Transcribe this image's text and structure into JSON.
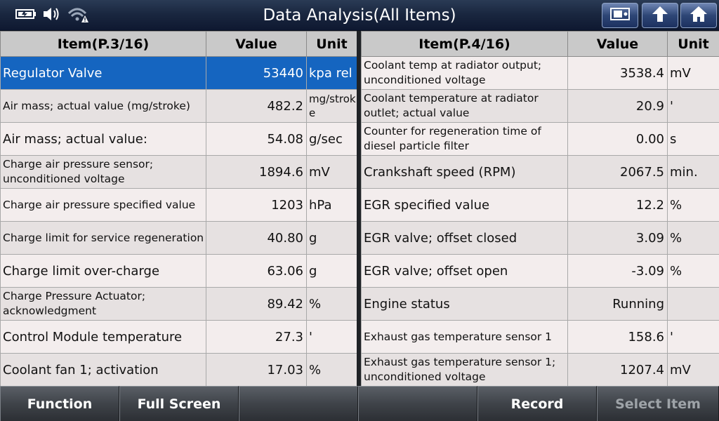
{
  "header": {
    "title": "Data Analysis(All Items)",
    "status_icons": [
      "battery-icon",
      "speaker-icon",
      "wifi-warning-icon"
    ],
    "buttons": [
      "print-screen-icon",
      "up-arrow-icon",
      "home-icon"
    ]
  },
  "left": {
    "headers": {
      "item": "Item(P.3/16)",
      "value": "Value",
      "unit": "Unit"
    },
    "rows": [
      {
        "name": "Regulator Valve",
        "value": "53440",
        "unit": "kpa rel"
      },
      {
        "name": "Air mass; actual value (mg/stroke)",
        "value": "482.2",
        "unit": "mg/stroke"
      },
      {
        "name": "Air mass; actual value:",
        "value": "54.08",
        "unit": "g/sec"
      },
      {
        "name": "Charge air pressure sensor; unconditioned voltage",
        "value": "1894.6",
        "unit": "mV"
      },
      {
        "name": "Charge air pressure specified value",
        "value": "1203",
        "unit": "hPa"
      },
      {
        "name": "Charge limit for service regeneration",
        "value": "40.80",
        "unit": "g"
      },
      {
        "name": "Charge limit over-charge",
        "value": "63.06",
        "unit": "g"
      },
      {
        "name": "Charge Pressure Actuator; acknowledgment",
        "value": "89.42",
        "unit": "%"
      },
      {
        "name": "Control Module temperature",
        "value": "27.3",
        "unit": "'"
      },
      {
        "name": "Coolant fan 1; activation",
        "value": "17.03",
        "unit": "%"
      }
    ]
  },
  "right": {
    "headers": {
      "item": "Item(P.4/16)",
      "value": "Value",
      "unit": "Unit"
    },
    "rows": [
      {
        "name": "Coolant temp at radiator output; unconditioned voltage",
        "value": "3538.4",
        "unit": "mV"
      },
      {
        "name": "Coolant temperature at radiator outlet; actual value",
        "value": "20.9",
        "unit": "'"
      },
      {
        "name": "Counter for regeneration time of diesel particle filter",
        "value": "0.00",
        "unit": "s"
      },
      {
        "name": "Crankshaft speed (RPM)",
        "value": "2067.5",
        "unit": "min."
      },
      {
        "name": "EGR specified value",
        "value": "12.2",
        "unit": "%"
      },
      {
        "name": "EGR valve; offset closed",
        "value": "3.09",
        "unit": "%"
      },
      {
        "name": "EGR valve; offset open",
        "value": "-3.09",
        "unit": "%"
      },
      {
        "name": "Engine status",
        "value": "Running",
        "unit": ""
      },
      {
        "name": "Exhaust gas temperature sensor 1",
        "value": "158.6",
        "unit": "'"
      },
      {
        "name": "Exhaust gas temperature sensor 1; unconditioned voltage",
        "value": "1207.4",
        "unit": "mV"
      }
    ]
  },
  "toolbar": {
    "buttons": [
      {
        "label": "Function"
      },
      {
        "label": "Full Screen"
      },
      {
        "label": ""
      },
      {
        "label": ""
      },
      {
        "label": "Record"
      },
      {
        "label": "Select Item"
      }
    ]
  }
}
